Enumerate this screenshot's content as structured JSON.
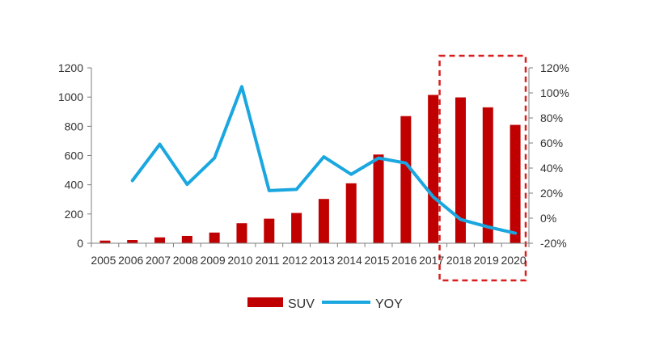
{
  "colors": {
    "bar": "#C00000",
    "line": "#1AA7E0",
    "axis": "#7F7F7F",
    "highlight_box": "#D81E1E",
    "text": "#333333"
  },
  "chart_data": {
    "type": "bar",
    "categories": [
      "2005",
      "2006",
      "2007",
      "2008",
      "2009",
      "2010",
      "2011",
      "2012",
      "2013",
      "2014",
      "2015",
      "2016",
      "2017",
      "2018",
      "2019",
      "2020"
    ],
    "series": [
      {
        "name": "SUV",
        "type": "bar",
        "axis": "left",
        "values": [
          18,
          22,
          40,
          50,
          73,
          137,
          168,
          207,
          303,
          410,
          607,
          870,
          1015,
          998,
          930,
          810
        ]
      },
      {
        "name": "YOY",
        "type": "line",
        "axis": "right",
        "values": [
          null,
          0.3,
          0.59,
          0.27,
          0.48,
          1.05,
          0.22,
          0.23,
          0.49,
          0.35,
          0.48,
          0.44,
          0.17,
          -0.01,
          -0.07,
          -0.12
        ]
      }
    ],
    "left_axis": {
      "ylim": [
        0,
        1200
      ],
      "ticks": [
        "0",
        "200",
        "400",
        "600",
        "800",
        "1000",
        "1200"
      ]
    },
    "right_axis": {
      "ylim": [
        -0.2,
        1.2
      ],
      "ticks": [
        "-20%",
        "0%",
        "20%",
        "40%",
        "60%",
        "80%",
        "100%",
        "120%"
      ]
    },
    "highlight": {
      "from_category": "2018",
      "to_category": "2020",
      "style": "dashed-box"
    },
    "grid": false,
    "legend": {
      "position": "bottom",
      "entries": [
        "SUV",
        "YOY"
      ]
    },
    "title": "",
    "xlabel": "",
    "ylabel": ""
  }
}
